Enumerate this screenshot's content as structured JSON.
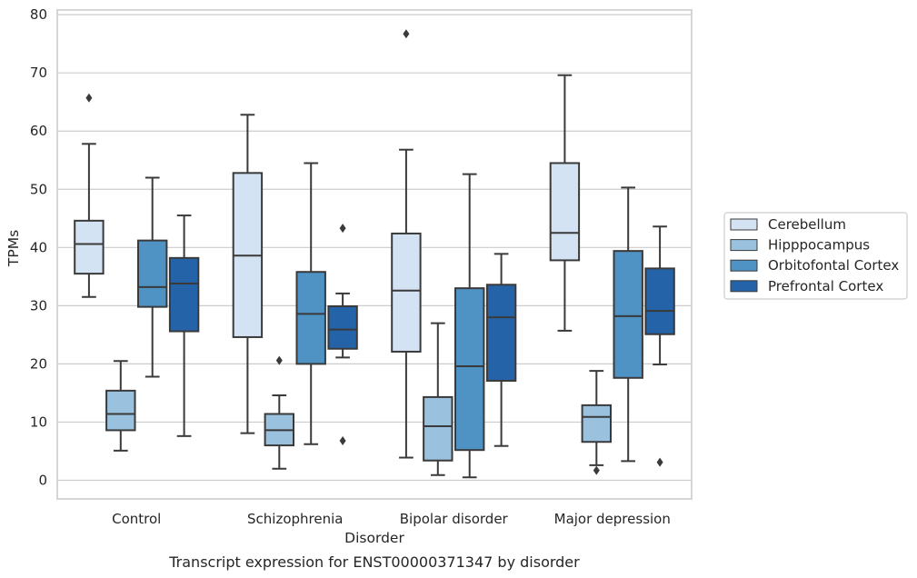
{
  "chart_data": {
    "type": "boxplot",
    "caption": "Transcript expression for ENST00000371347 by disorder",
    "xlabel": "Disorder",
    "ylabel": "TPMs",
    "ylim": [
      -3.2,
      80.8
    ],
    "yticks": [
      0,
      10,
      20,
      30,
      40,
      50,
      60,
      70,
      80
    ],
    "grid": true,
    "legend_position": "right",
    "categories": [
      "Control",
      "Schizophrenia",
      "Bipolar disorder",
      "Major depression"
    ],
    "series": [
      {
        "name": "Cerebellum",
        "color": "#d4e3f3",
        "boxes": [
          {
            "whislo": 31.5,
            "q1": 35.5,
            "med": 40.6,
            "q3": 44.6,
            "whishi": 57.8,
            "fliers": [
              65.7
            ]
          },
          {
            "whislo": 8.1,
            "q1": 24.6,
            "med": 38.6,
            "q3": 52.8,
            "whishi": 62.8,
            "fliers": []
          },
          {
            "whislo": 3.9,
            "q1": 22.1,
            "med": 32.6,
            "q3": 42.4,
            "whishi": 56.8,
            "fliers": [
              76.7
            ]
          },
          {
            "whislo": 25.7,
            "q1": 37.8,
            "med": 42.5,
            "q3": 54.5,
            "whishi": 69.6,
            "fliers": []
          }
        ]
      },
      {
        "name": "Hipppocampus",
        "color": "#9ac1de",
        "boxes": [
          {
            "whislo": 5.1,
            "q1": 8.6,
            "med": 11.4,
            "q3": 15.4,
            "whishi": 20.5,
            "fliers": []
          },
          {
            "whislo": 2.0,
            "q1": 6.0,
            "med": 8.6,
            "q3": 11.4,
            "whishi": 14.6,
            "fliers": [
              20.6
            ]
          },
          {
            "whislo": 0.9,
            "q1": 3.4,
            "med": 9.3,
            "q3": 14.3,
            "whishi": 27.0,
            "fliers": []
          },
          {
            "whislo": 2.6,
            "q1": 6.6,
            "med": 10.9,
            "q3": 12.9,
            "whishi": 18.8,
            "fliers": [
              1.7
            ]
          }
        ]
      },
      {
        "name": "Orbitofontal Cortex",
        "color": "#4f92c4",
        "boxes": [
          {
            "whislo": 17.8,
            "q1": 29.8,
            "med": 33.2,
            "q3": 41.2,
            "whishi": 52.0,
            "fliers": []
          },
          {
            "whislo": 6.2,
            "q1": 20.0,
            "med": 28.6,
            "q3": 35.8,
            "whishi": 54.5,
            "fliers": []
          },
          {
            "whislo": 0.5,
            "q1": 5.2,
            "med": 19.6,
            "q3": 33.0,
            "whishi": 52.6,
            "fliers": []
          },
          {
            "whislo": 3.3,
            "q1": 17.6,
            "med": 28.2,
            "q3": 39.4,
            "whishi": 50.3,
            "fliers": []
          }
        ]
      },
      {
        "name": "Prefrontal Cortex",
        "color": "#2563a8",
        "boxes": [
          {
            "whislo": 7.6,
            "q1": 25.6,
            "med": 33.8,
            "q3": 38.2,
            "whishi": 45.5,
            "fliers": []
          },
          {
            "whislo": 21.1,
            "q1": 22.6,
            "med": 25.9,
            "q3": 29.9,
            "whishi": 32.1,
            "fliers": [
              43.3,
              6.8
            ]
          },
          {
            "whislo": 5.9,
            "q1": 17.1,
            "med": 28.0,
            "q3": 33.6,
            "whishi": 38.9,
            "fliers": []
          },
          {
            "whislo": 19.9,
            "q1": 25.1,
            "med": 29.1,
            "q3": 36.4,
            "whishi": 43.6,
            "fliers": [
              3.1
            ]
          }
        ]
      }
    ]
  }
}
